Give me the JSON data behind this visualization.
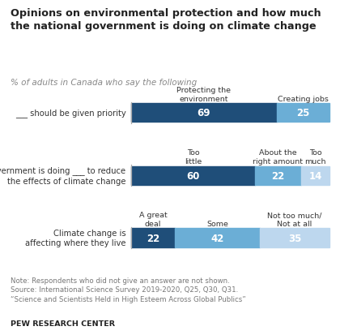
{
  "title": "Opinions on environmental protection and how much\nthe national government is doing on climate change",
  "subtitle": "% of adults in Canada who say the following",
  "rows": [
    {
      "label": "___ should be given priority",
      "col_labels": [
        "Protecting the\nenvironment",
        "Creating jobs"
      ],
      "values": [
        69,
        25
      ],
      "colors": [
        "#1f4e79",
        "#6baed6"
      ]
    },
    {
      "label": "Government is doing ___ to reduce\nthe effects of climate change",
      "col_labels": [
        "Too\nlittle",
        "About the\nright amount",
        "Too\nmuch"
      ],
      "values": [
        60,
        22,
        14
      ],
      "colors": [
        "#1f4e79",
        "#6baed6",
        "#bdd7ee"
      ]
    },
    {
      "label": "Climate change is\naffecting where they live",
      "col_labels": [
        "A great\ndeal",
        "Some",
        "Not too much/\nNot at all"
      ],
      "values": [
        22,
        42,
        35
      ],
      "colors": [
        "#1f4e79",
        "#6baed6",
        "#bdd7ee"
      ]
    }
  ],
  "note": "Note: Respondents who did not give an answer are not shown.\nSource: International Science Survey 2019-2020, Q25, Q30, Q31.\n“Science and Scientists Held in High Esteem Across Global Publics”",
  "footer": "PEW RESEARCH CENTER",
  "background_color": "#ffffff"
}
